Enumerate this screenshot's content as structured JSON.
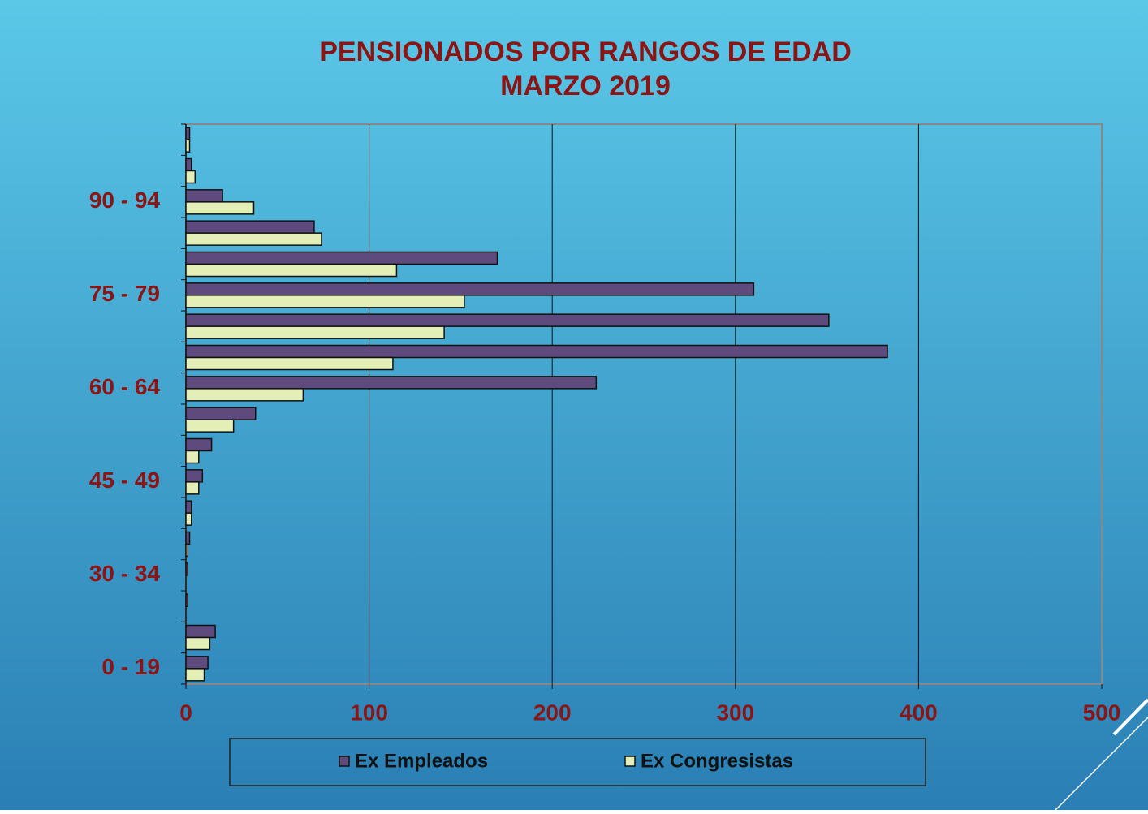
{
  "chart_data": {
    "type": "barh",
    "title": "PENSIONADOS POR RANGOS  DE EDAD",
    "subtitle": "MARZO   2019",
    "categories": [
      "0 - 19",
      null,
      null,
      "30 - 34",
      null,
      null,
      "45 - 49",
      null,
      null,
      "60 - 64",
      null,
      null,
      "75 - 79",
      null,
      null,
      "90 - 94",
      null,
      null
    ],
    "series": [
      {
        "name": "Ex Empleados",
        "color": "#5e4a7c",
        "values": [
          12,
          16,
          1,
          1,
          2,
          3,
          9,
          14,
          38,
          224,
          383,
          351,
          310,
          170,
          70,
          20,
          3,
          2
        ]
      },
      {
        "name": "Ex Congresistas",
        "color": "#e4efb8",
        "values": [
          10,
          13,
          0,
          0,
          1,
          3,
          7,
          7,
          26,
          64,
          113,
          141,
          152,
          115,
          74,
          37,
          5,
          2
        ]
      }
    ],
    "xlim": [
      0,
      500
    ],
    "xticks": [
      0,
      100,
      200,
      300,
      400,
      500
    ],
    "grid": true,
    "legend": "bottom"
  }
}
